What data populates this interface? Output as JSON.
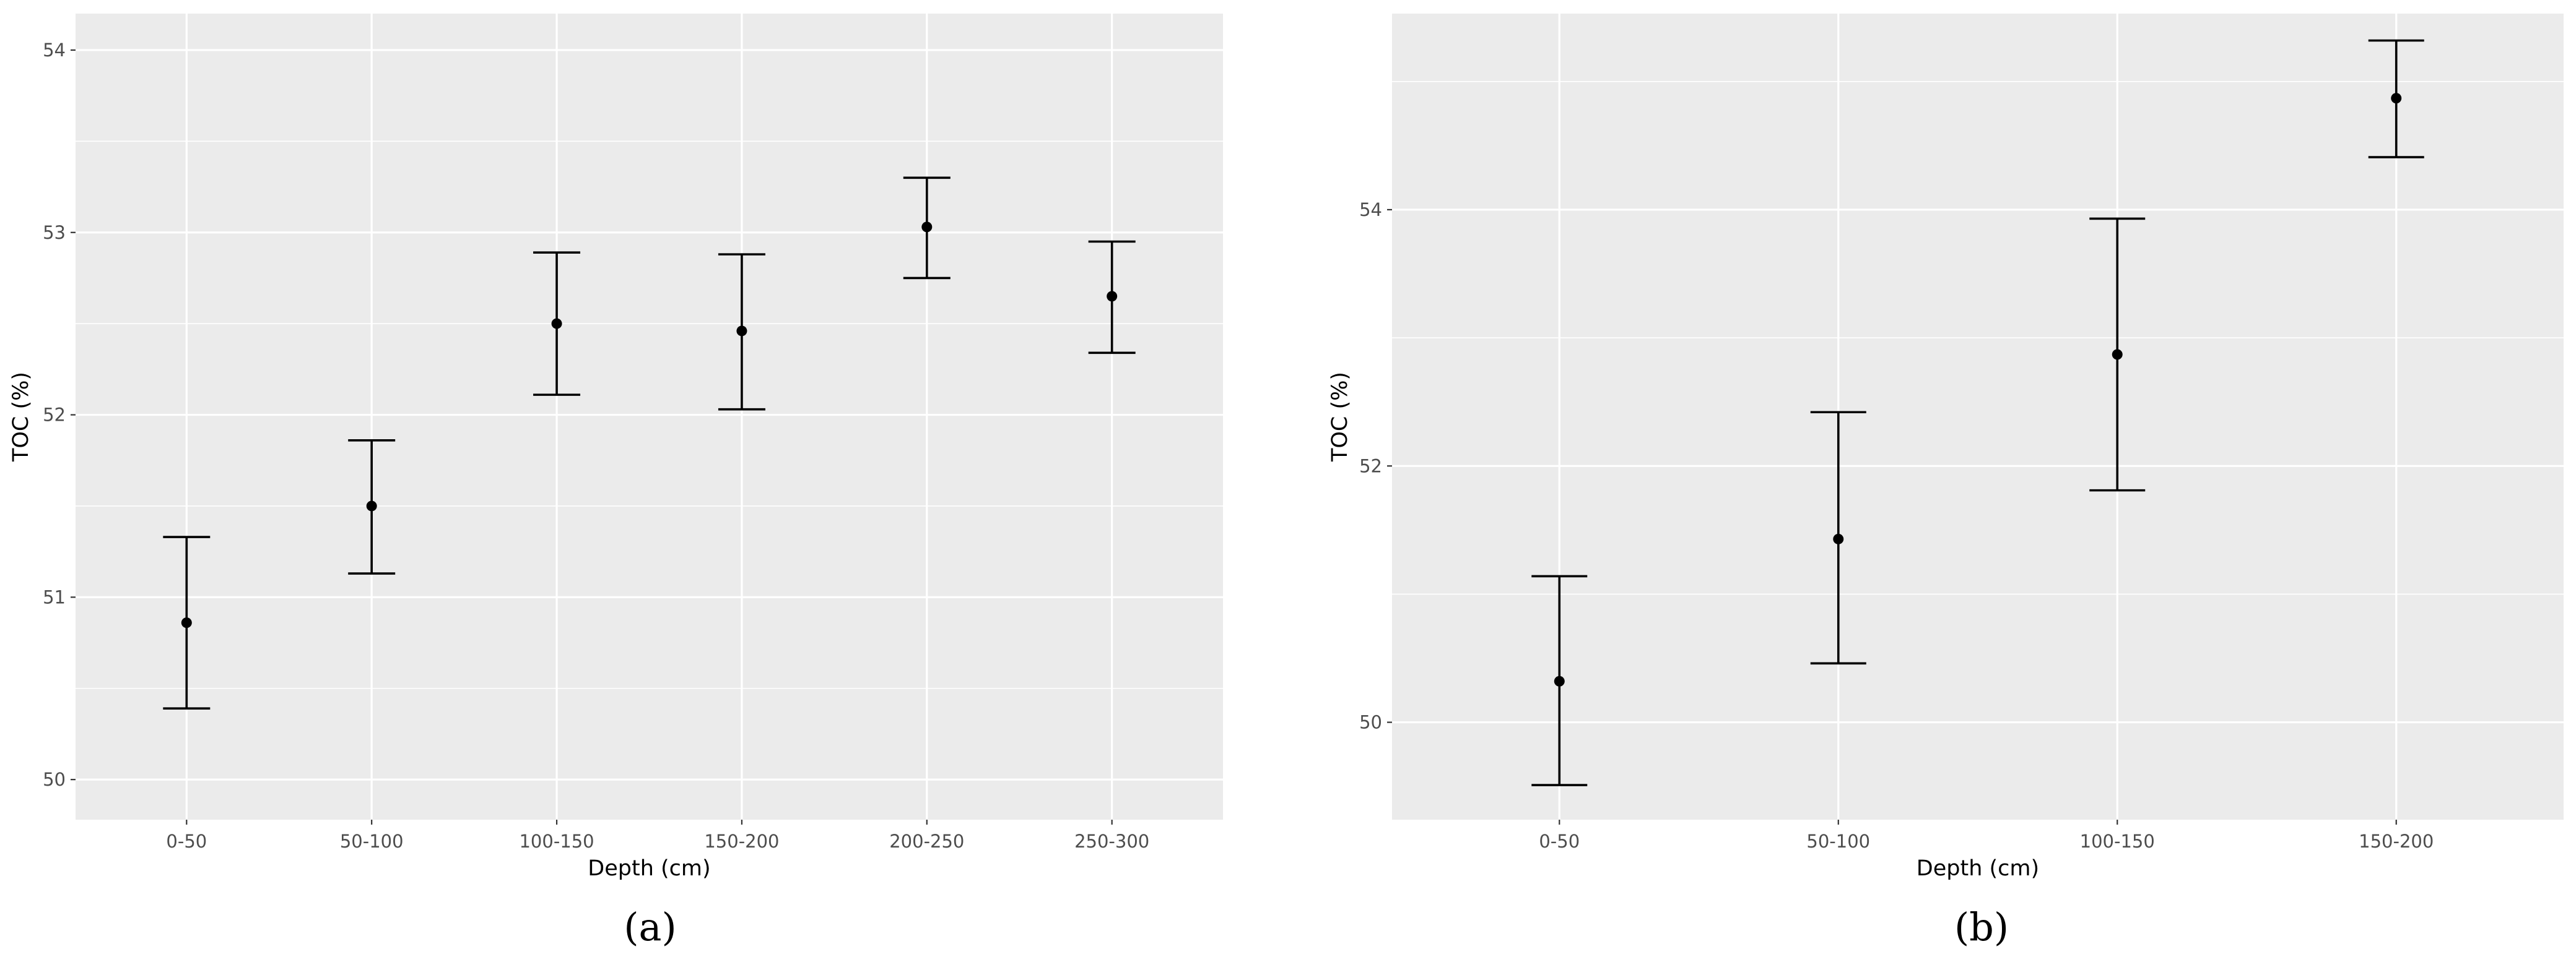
{
  "chart_data": [
    {
      "panel": "a",
      "caption": "(a)",
      "type": "scatter",
      "xlabel": "Depth (cm)",
      "ylabel": "TOC (%)",
      "categories": [
        "0-50",
        "50-100",
        "100-150",
        "150-200",
        "200-250",
        "250-300"
      ],
      "mean": [
        50.86,
        51.5,
        52.5,
        52.46,
        53.03,
        52.65
      ],
      "lower": [
        50.39,
        51.13,
        52.11,
        52.03,
        52.75,
        52.34
      ],
      "upper": [
        51.33,
        51.86,
        52.89,
        52.88,
        53.3,
        52.95
      ],
      "ylim": [
        49.78,
        54.2
      ],
      "yticks": [
        50,
        51,
        52,
        53,
        54
      ],
      "grid": true,
      "legend": "none"
    },
    {
      "panel": "b",
      "caption": "(b)",
      "type": "scatter",
      "xlabel": "Depth (cm)",
      "ylabel": "TOC (%)",
      "categories": [
        "0-50",
        "50-100",
        "100-150",
        "150-200"
      ],
      "mean": [
        50.32,
        51.43,
        52.87,
        54.87
      ],
      "lower": [
        49.51,
        50.46,
        51.81,
        54.41
      ],
      "upper": [
        51.14,
        52.42,
        53.93,
        55.32
      ],
      "ylim": [
        49.24,
        55.53
      ],
      "yticks": [
        50,
        52,
        54
      ],
      "grid": true,
      "legend": "none"
    }
  ]
}
